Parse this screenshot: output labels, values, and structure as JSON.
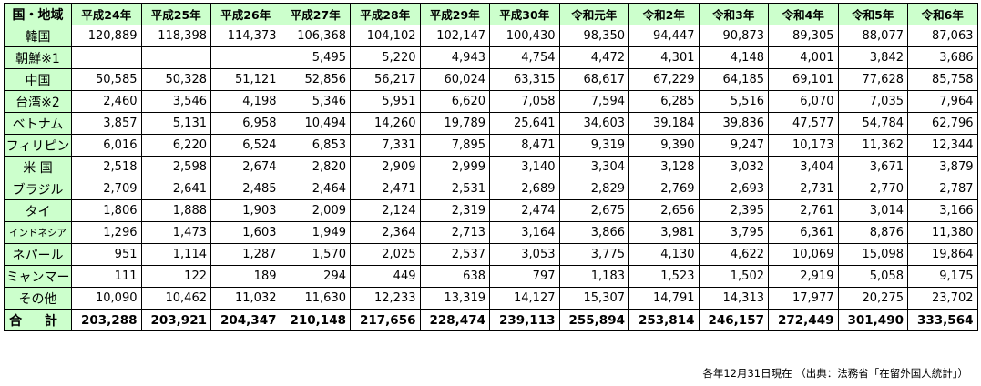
{
  "table": {
    "corner": "国・地域",
    "columns": [
      "平成24年",
      "平成25年",
      "平成26年",
      "平成27年",
      "平成28年",
      "平成29年",
      "平成30年",
      "令和元年",
      "令和2年",
      "令和3年",
      "令和4年",
      "令和5年",
      "令和6年"
    ],
    "rows": [
      {
        "label": "韓国",
        "small": false,
        "values": [
          "120,889",
          "118,398",
          "114,373",
          "106,368",
          "104,102",
          "102,147",
          "100,430",
          "98,350",
          "94,447",
          "90,873",
          "89,305",
          "88,077",
          "87,063"
        ]
      },
      {
        "label": "朝鮮※1",
        "small": false,
        "values": [
          "",
          "",
          "",
          "5,495",
          "5,220",
          "4,943",
          "4,754",
          "4,472",
          "4,301",
          "4,148",
          "4,001",
          "3,842",
          "3,686"
        ]
      },
      {
        "label": "中国",
        "small": false,
        "values": [
          "50,585",
          "50,328",
          "51,121",
          "52,856",
          "56,217",
          "60,024",
          "63,315",
          "68,617",
          "67,229",
          "64,185",
          "69,101",
          "77,628",
          "85,758"
        ]
      },
      {
        "label": "台湾※2",
        "small": false,
        "values": [
          "2,460",
          "3,546",
          "4,198",
          "5,346",
          "5,951",
          "6,620",
          "7,058",
          "7,594",
          "6,285",
          "5,516",
          "6,070",
          "7,035",
          "7,964"
        ]
      },
      {
        "label": "ベトナム",
        "small": false,
        "values": [
          "3,857",
          "5,131",
          "6,958",
          "10,494",
          "14,260",
          "19,789",
          "25,641",
          "34,603",
          "39,184",
          "39,836",
          "47,577",
          "54,784",
          "62,796"
        ]
      },
      {
        "label": "フィリピン",
        "small": false,
        "values": [
          "6,016",
          "6,220",
          "6,524",
          "6,853",
          "7,331",
          "7,895",
          "8,471",
          "9,319",
          "9,390",
          "9,247",
          "10,173",
          "11,362",
          "12,344"
        ]
      },
      {
        "label": "米 国",
        "small": false,
        "values": [
          "2,518",
          "2,598",
          "2,674",
          "2,820",
          "2,909",
          "2,999",
          "3,140",
          "3,304",
          "3,128",
          "3,032",
          "3,404",
          "3,671",
          "3,879"
        ]
      },
      {
        "label": "ブラジル",
        "small": false,
        "values": [
          "2,709",
          "2,641",
          "2,485",
          "2,464",
          "2,471",
          "2,531",
          "2,689",
          "2,829",
          "2,769",
          "2,693",
          "2,731",
          "2,770",
          "2,787"
        ]
      },
      {
        "label": "タイ",
        "small": false,
        "values": [
          "1,806",
          "1,888",
          "1,903",
          "2,009",
          "2,124",
          "2,319",
          "2,474",
          "2,675",
          "2,656",
          "2,395",
          "2,761",
          "3,014",
          "3,166"
        ]
      },
      {
        "label": "インドネシア",
        "small": true,
        "values": [
          "1,296",
          "1,473",
          "1,603",
          "1,949",
          "2,364",
          "2,713",
          "3,164",
          "3,866",
          "3,981",
          "3,795",
          "6,361",
          "8,876",
          "11,380"
        ]
      },
      {
        "label": "ネパール",
        "small": false,
        "values": [
          "951",
          "1,114",
          "1,287",
          "1,570",
          "2,025",
          "2,537",
          "3,053",
          "3,775",
          "4,130",
          "4,622",
          "10,069",
          "15,098",
          "19,864"
        ]
      },
      {
        "label": "ミャンマー",
        "small": false,
        "values": [
          "111",
          "122",
          "189",
          "294",
          "449",
          "638",
          "797",
          "1,183",
          "1,523",
          "1,502",
          "2,919",
          "5,058",
          "9,175"
        ]
      },
      {
        "label": "その他",
        "small": false,
        "values": [
          "10,090",
          "10,462",
          "11,032",
          "11,630",
          "12,233",
          "13,319",
          "14,127",
          "15,307",
          "14,791",
          "14,313",
          "17,977",
          "20,275",
          "23,702"
        ]
      }
    ],
    "total": {
      "label": "合 計",
      "values": [
        "203,288",
        "203,921",
        "204,347",
        "210,148",
        "217,656",
        "228,474",
        "239,113",
        "255,894",
        "253,814",
        "246,157",
        "272,449",
        "301,490",
        "333,564"
      ]
    }
  },
  "source_note": "各年12月31日現在 （出典：法務省「在留外国人統計」）",
  "colors": {
    "header_bg": "#ccffcc",
    "border": "#000000",
    "text": "#000000"
  }
}
